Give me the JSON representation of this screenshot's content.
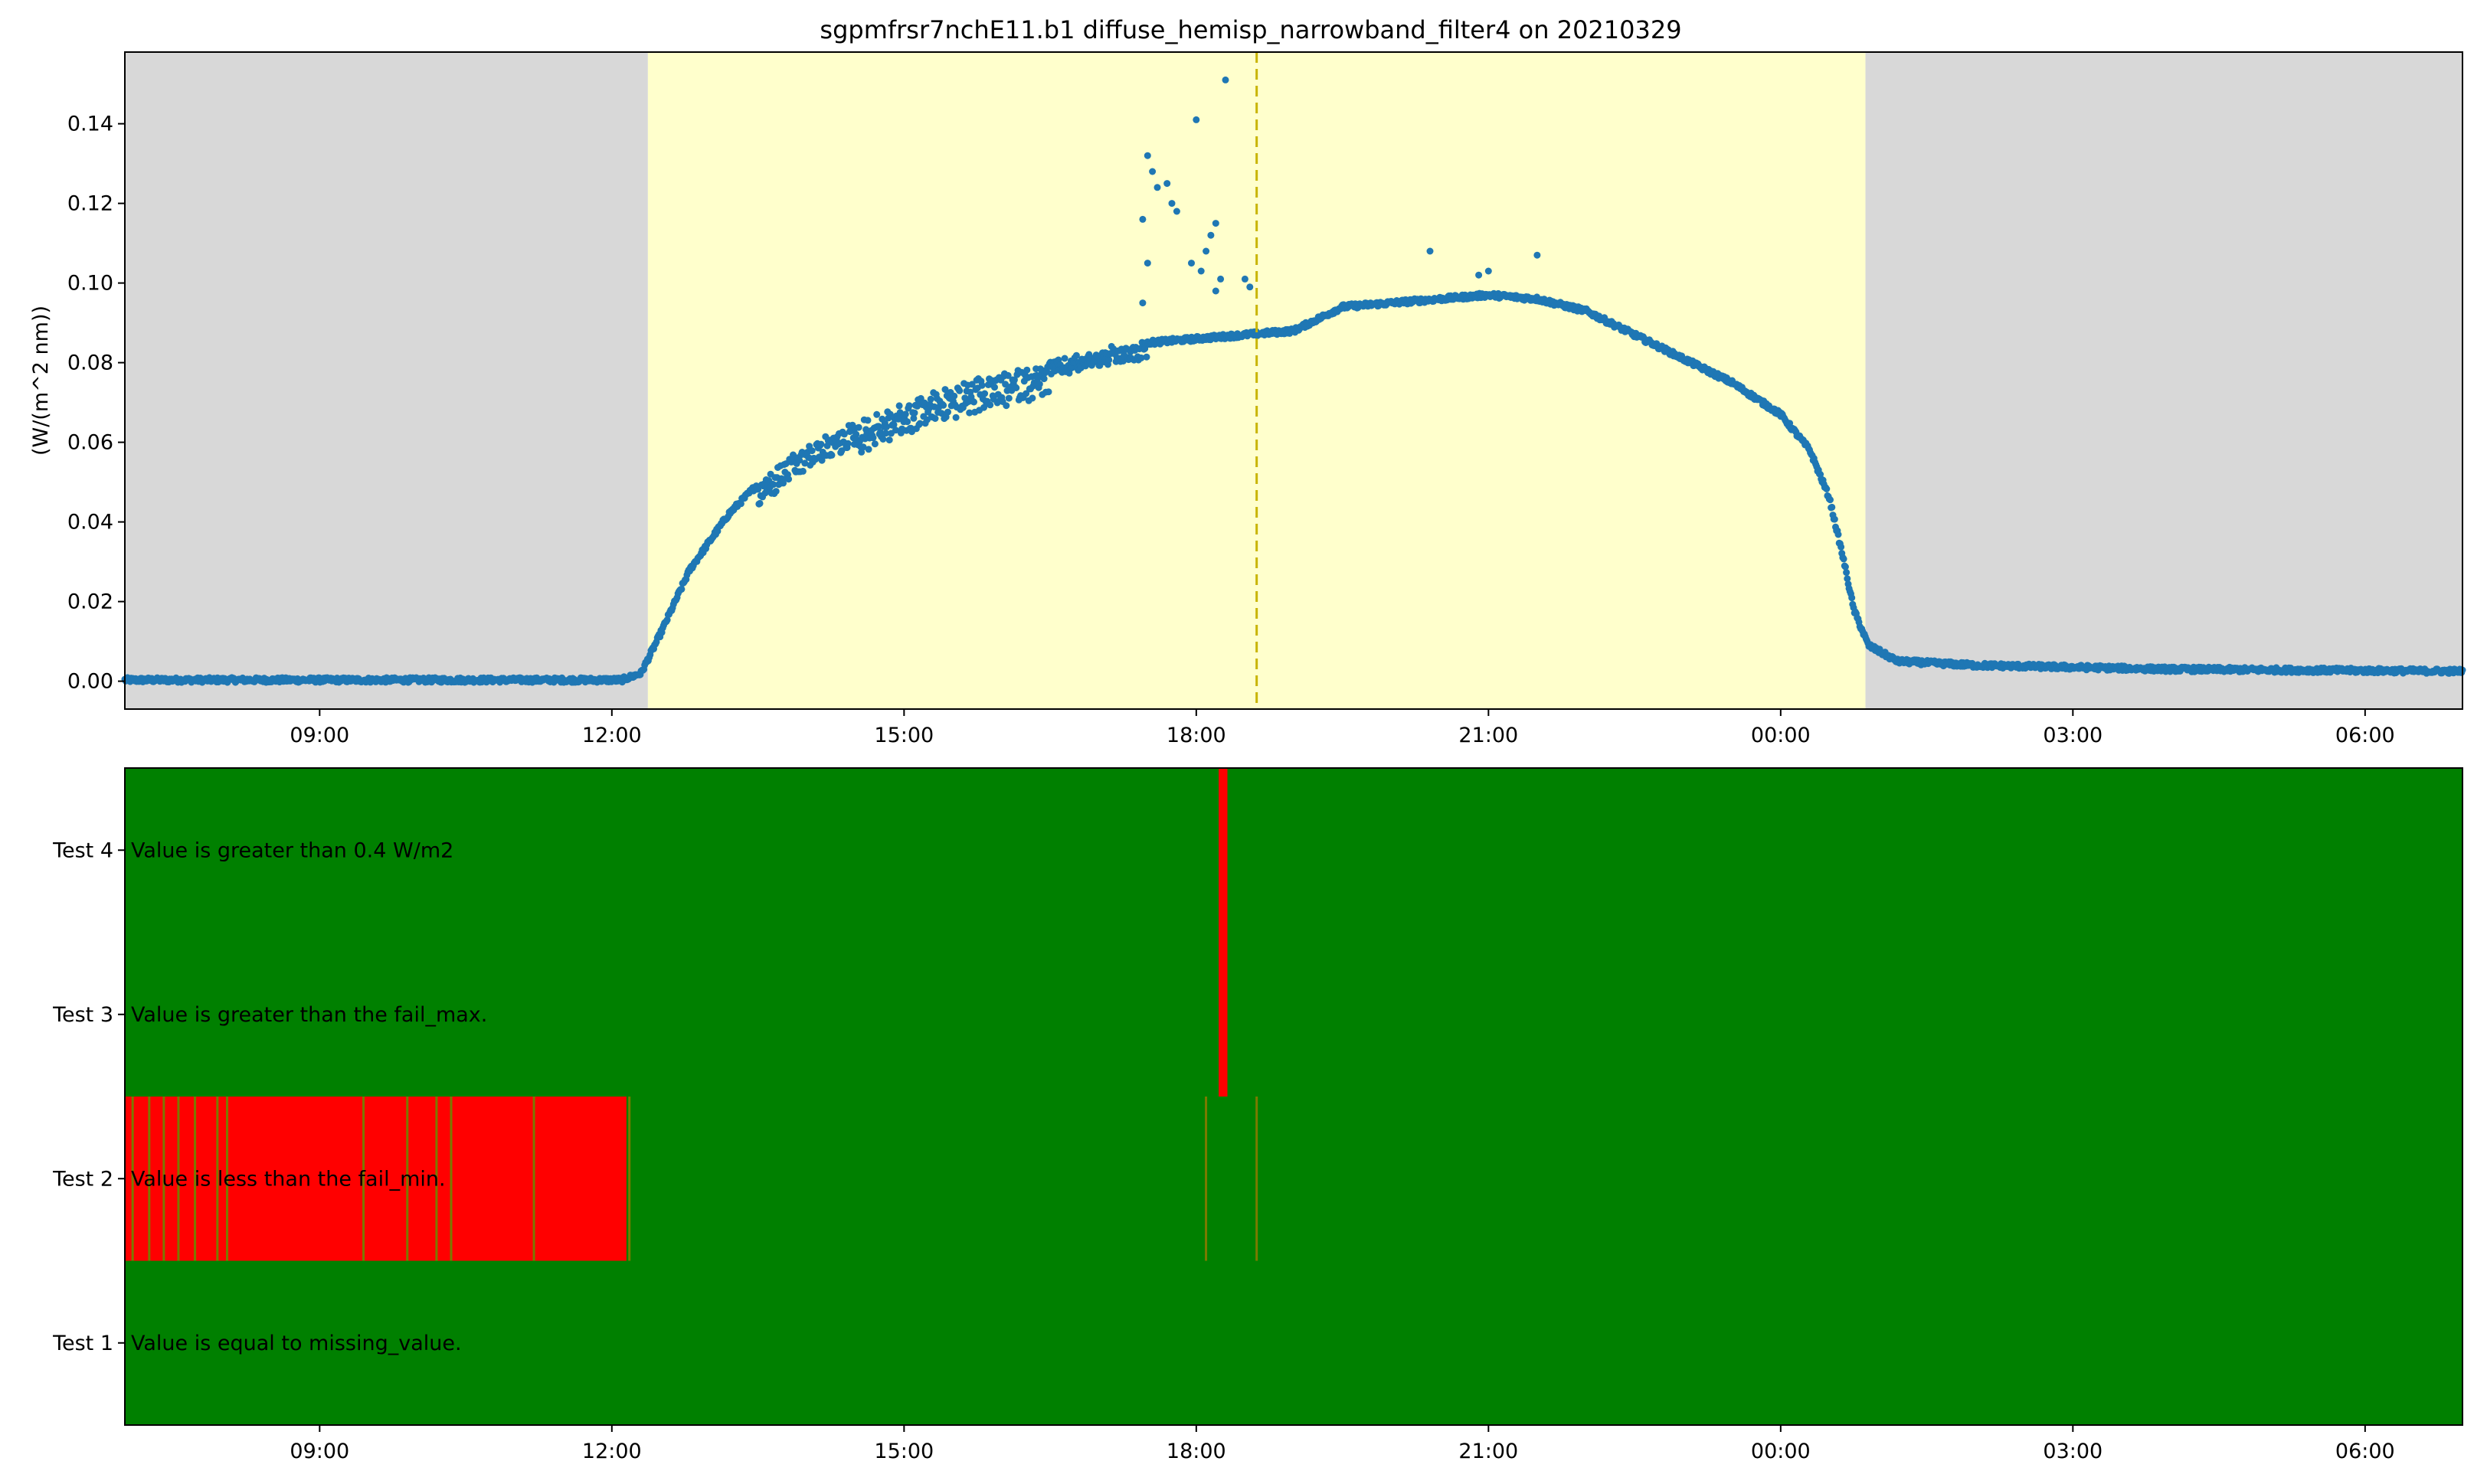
{
  "chart_data": [
    {
      "type": "scatter",
      "title": "sgpmfrsr7nchE11.b1 diffuse_hemisp_narrowband_filter4 on 20210329",
      "ylabel": "(W/(m^2 nm))",
      "xlabel": "",
      "x_unit": "hours elapsed from 00:00 on 20210329 (tick labels shown as HH:MM)",
      "xlim": [
        7.0,
        31.0
      ],
      "ylim": [
        -0.007,
        0.158
      ],
      "y_ticks": [
        "0.00",
        "0.02",
        "0.04",
        "0.06",
        "0.08",
        "0.10",
        "0.12",
        "0.14"
      ],
      "x_ticks": [
        {
          "x": 9,
          "label": "09:00"
        },
        {
          "x": 12,
          "label": "12:00"
        },
        {
          "x": 15,
          "label": "15:00"
        },
        {
          "x": 18,
          "label": "18:00"
        },
        {
          "x": 21,
          "label": "21:00"
        },
        {
          "x": 24,
          "label": "00:00"
        },
        {
          "x": 27,
          "label": "03:00"
        },
        {
          "x": 30,
          "label": "06:00"
        }
      ],
      "night_shading": [
        [
          7.0,
          12.37
        ],
        [
          24.87,
          31.0
        ]
      ],
      "day_shading": [
        12.37,
        24.87
      ],
      "solar_noon_line": 18.62,
      "colors": {
        "night": "#d8d8d8",
        "day": "#ffffcc",
        "points": "#1f77b4",
        "noon_line": "#c8b400"
      },
      "series": [
        {
          "profile": [
            [
              7.0,
              0.0003
            ],
            [
              12.1,
              0.0003
            ],
            [
              12.3,
              0.002
            ],
            [
              12.5,
              0.012
            ],
            [
              12.8,
              0.028
            ],
            [
              13.2,
              0.042
            ],
            [
              13.6,
              0.052
            ],
            [
              14.0,
              0.059
            ],
            [
              14.5,
              0.065
            ],
            [
              15.0,
              0.07
            ],
            [
              15.5,
              0.074
            ],
            [
              16.0,
              0.077
            ],
            [
              16.5,
              0.08
            ],
            [
              17.0,
              0.083
            ],
            [
              17.5,
              0.085
            ],
            [
              18.0,
              0.086
            ],
            [
              18.5,
              0.087
            ],
            [
              19.0,
              0.088
            ],
            [
              19.5,
              0.094
            ],
            [
              20.0,
              0.095
            ],
            [
              20.5,
              0.096
            ],
            [
              21.0,
              0.097
            ],
            [
              21.5,
              0.096
            ],
            [
              22.0,
              0.093
            ],
            [
              22.5,
              0.087
            ],
            [
              23.0,
              0.081
            ],
            [
              23.5,
              0.075
            ],
            [
              24.0,
              0.067
            ],
            [
              24.3,
              0.058
            ],
            [
              24.5,
              0.046
            ],
            [
              24.65,
              0.03
            ],
            [
              24.75,
              0.018
            ],
            [
              24.9,
              0.009
            ],
            [
              25.2,
              0.005
            ],
            [
              26.0,
              0.004
            ],
            [
              28.0,
              0.003
            ],
            [
              31.0,
              0.0025
            ]
          ],
          "spread": [
            [
              13.5,
              14.5,
              0.006
            ],
            [
              14.5,
              16.5,
              0.008
            ],
            [
              16.5,
              17.5,
              0.004
            ]
          ],
          "outliers": [
            [
              17.5,
              0.132
            ],
            [
              17.55,
              0.128
            ],
            [
              17.6,
              0.124
            ],
            [
              17.45,
              0.116
            ],
            [
              17.5,
              0.105
            ],
            [
              17.45,
              0.095
            ],
            [
              17.7,
              0.125
            ],
            [
              17.75,
              0.12
            ],
            [
              17.8,
              0.118
            ],
            [
              18.0,
              0.141
            ],
            [
              18.3,
              0.151
            ],
            [
              18.2,
              0.115
            ],
            [
              18.15,
              0.112
            ],
            [
              18.1,
              0.108
            ],
            [
              17.95,
              0.105
            ],
            [
              18.05,
              0.103
            ],
            [
              18.25,
              0.101
            ],
            [
              18.2,
              0.098
            ],
            [
              18.5,
              0.101
            ],
            [
              18.55,
              0.099
            ],
            [
              20.4,
              0.108
            ],
            [
              21.5,
              0.107
            ],
            [
              20.9,
              0.102
            ],
            [
              21.0,
              0.103
            ]
          ]
        }
      ]
    },
    {
      "type": "heatmap",
      "xlim": [
        7.0,
        31.0
      ],
      "x_ticks": [
        {
          "x": 9,
          "label": "09:00"
        },
        {
          "x": 12,
          "label": "12:00"
        },
        {
          "x": 15,
          "label": "15:00"
        },
        {
          "x": 18,
          "label": "18:00"
        },
        {
          "x": 21,
          "label": "21:00"
        },
        {
          "x": 24,
          "label": "00:00"
        },
        {
          "x": 27,
          "label": "03:00"
        },
        {
          "x": 30,
          "label": "06:00"
        }
      ],
      "colors": {
        "pass": "#008000",
        "fail": "#ff0000",
        "fail_edge": "#7a7a00"
      },
      "rows": [
        {
          "label": "Test 4",
          "description": "Value is greater than 0.4 W/m2",
          "fail_ranges": [
            [
              18.23,
              18.32
            ]
          ]
        },
        {
          "label": "Test 3",
          "description": "Value is greater than the fail_max.",
          "fail_ranges": [
            [
              18.23,
              18.32
            ]
          ]
        },
        {
          "label": "Test 2",
          "description": "Value is less than the fail_min.",
          "fail_ranges": [
            [
              7.0,
              12.15
            ]
          ],
          "edge_marks": [
            7.08,
            7.25,
            7.4,
            7.55,
            7.72,
            7.95,
            8.05,
            9.45,
            9.9,
            10.2,
            10.35,
            11.2,
            12.18,
            18.1,
            18.62
          ]
        },
        {
          "label": "Test 1",
          "description": "Value is equal to missing_value.",
          "fail_ranges": []
        }
      ]
    }
  ]
}
